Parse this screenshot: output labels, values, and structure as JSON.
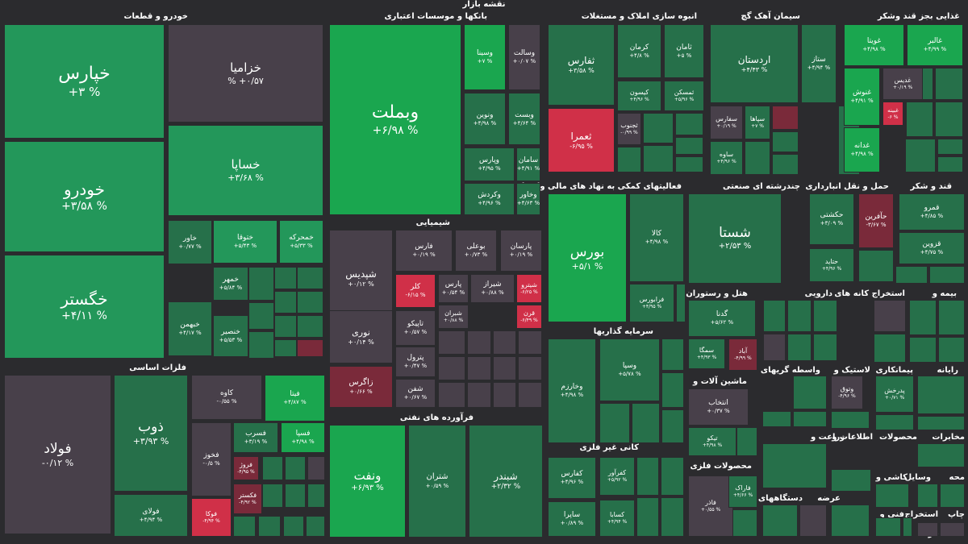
{
  "page_title": "نقشه بازار",
  "colors": {
    "background": "#2b2b2e",
    "strong_up": "#1aa64f",
    "up": "#23975a",
    "mild_up": "#26704a",
    "flat": "#48404a",
    "down": "#7a2a3a",
    "strong_down": "#d03048"
  },
  "sectors": [
    {
      "name": "خودرو و قطعات",
      "tiles": [
        {
          "symbol": "خپارس",
          "change": "+۳ %"
        },
        {
          "symbol": "خودرو",
          "change": "+۳/۵۸ %"
        },
        {
          "symbol": "خگستر",
          "change": "+۴/۱۱ %"
        },
        {
          "symbol": "خزامیا",
          "change": "% +۰/۵۷"
        },
        {
          "symbol": "خساپا",
          "change": "+۳/۶۸ %"
        },
        {
          "symbol": "خاور",
          "change": "+۰/۷۷ %"
        },
        {
          "symbol": "خبهمن",
          "change": "+۴/۱۷ %"
        },
        {
          "symbol": "ختوقا",
          "change": "+۵/۴۳ %"
        },
        {
          "symbol": "خمحرکه",
          "change": "+۵/۳۳ %"
        },
        {
          "symbol": "خمهر",
          "change": "+۵/۸۴ %"
        },
        {
          "symbol": "خنصیر",
          "change": "+۵/۵۳ %"
        }
      ]
    },
    {
      "name": "بانکها و موسسات اعتباری",
      "tiles": [
        {
          "symbol": "وبملت",
          "change": "+۶/۹۸ %"
        },
        {
          "symbol": "وسینا",
          "change": "+۷ %"
        },
        {
          "symbol": "وسالت",
          "change": "+۰/۰۷ %"
        },
        {
          "symbol": "ونوین",
          "change": "+۴/۹۸ %"
        },
        {
          "symbol": "وبست",
          "change": "+۴/۶۴ %"
        },
        {
          "symbol": "وپارس",
          "change": "+۴/۹۵ %"
        },
        {
          "symbol": "سامان",
          "change": "+۴/۹۱ %"
        },
        {
          "symbol": "وکردش",
          "change": "+۴/۹۶ %"
        },
        {
          "symbol": "وخاور",
          "change": "+۴/۶۳ %"
        }
      ]
    },
    {
      "name": "شیمیایی",
      "tiles": [
        {
          "symbol": "شپدیس",
          "change": "+۰/۱۲ %"
        },
        {
          "symbol": "نوری",
          "change": "+۰/۱۴ %"
        },
        {
          "symbol": "زاگرس",
          "change": "+۰/۶۶ %"
        },
        {
          "symbol": "فارس",
          "change": "+۰/۱۹ %"
        },
        {
          "symbol": "بوعلی",
          "change": "+۰/۷۳ %"
        },
        {
          "symbol": "پارسان",
          "change": "+۰/۱۹ %"
        },
        {
          "symbol": "کلر",
          "change": "-۶/۱۵ %"
        },
        {
          "symbol": "پارس",
          "change": "+۰/۵۴ %"
        },
        {
          "symbol": "شیراز",
          "change": "+۰/۸۸ %"
        },
        {
          "symbol": "شیترو",
          "change": "-۶/۲۵ %"
        },
        {
          "symbol": "شبران",
          "change": "+۰/۸۸ %"
        },
        {
          "symbol": "قرن",
          "change": "-۶/۴۹ %"
        },
        {
          "symbol": "تاپیکو",
          "change": "+۰/۵۷ %"
        },
        {
          "symbol": "پترول",
          "change": "+۰/۴۷ %"
        },
        {
          "symbol": "شفن",
          "change": "+۰/۶۷ %"
        }
      ]
    },
    {
      "name": "فرآورده های نفتی",
      "tiles": [
        {
          "symbol": "ونفت",
          "change": "+۶/۹۳ %"
        },
        {
          "symbol": "شتران",
          "change": "+۰/۵۹ %"
        },
        {
          "symbol": "شبندر",
          "change": "+۲/۳۲ %"
        }
      ]
    },
    {
      "name": "فلزات اساسی",
      "tiles": [
        {
          "symbol": "فولاد",
          "change": "-۰/۱۲ %"
        },
        {
          "symbol": "ذوب",
          "change": "+۳/۹۳ %"
        },
        {
          "symbol": "فولای",
          "change": "+۴/۹۴ %"
        },
        {
          "symbol": "کاوه",
          "change": "-۰/۵۵ %"
        },
        {
          "symbol": "فیتا",
          "change": "+۴/۸۷ %"
        },
        {
          "symbol": "فخوز",
          "change": "-۰/۵ %"
        },
        {
          "symbol": "فسرب",
          "change": "+۳/۱۹ %"
        },
        {
          "symbol": "فسپا",
          "change": "+۴/۹۸ %"
        },
        {
          "symbol": "فروژ",
          "change": "-۴/۹۵ %"
        },
        {
          "symbol": "فکستر",
          "change": "-۴/۹۲ %"
        },
        {
          "symbol": "فوکا",
          "change": "-۴/۹۴ %"
        }
      ]
    },
    {
      "name": "انبوه سازی املاک و مستغلات",
      "tiles": [
        {
          "symbol": "ثفارس",
          "change": "+۳/۵۸ %"
        },
        {
          "symbol": "کرمان",
          "change": "+۴/۸ %"
        },
        {
          "symbol": "ثامان",
          "change": "+۵ %"
        },
        {
          "symbol": "کیسون",
          "change": "+۴/۹۶ %"
        },
        {
          "symbol": "ثمسکن",
          "change": "+۵/۹۶ %"
        },
        {
          "symbol": "ثعمرا",
          "change": "-۶/۹۵ %"
        },
        {
          "symbol": "ثجنوب",
          "change": "-۰/۹۹ %"
        }
      ]
    },
    {
      "name": "سیمان آهک گچ",
      "tiles": [
        {
          "symbol": "اردستان",
          "change": "+۴/۴۳ %"
        },
        {
          "symbol": "ستاز",
          "change": "+۴/۹۴ %"
        },
        {
          "symbol": "سفارس",
          "change": "+۰/۱۹ %"
        },
        {
          "symbol": "سپاها",
          "change": "+۷ %"
        },
        {
          "symbol": "ساوه",
          "change": "+۴/۹۶ %"
        }
      ]
    },
    {
      "name": "غذایی بجز قند وشکر",
      "tiles": [
        {
          "symbol": "غویتا",
          "change": "+۴/۹۸ %"
        },
        {
          "symbol": "غالبر",
          "change": "+۴/۹۹ %"
        },
        {
          "symbol": "غنوش",
          "change": "+۴/۹۱ %"
        },
        {
          "symbol": "غدیس",
          "change": "+۰/۱۹ %"
        },
        {
          "symbol": "غبینه",
          "change": "-۶ %"
        },
        {
          "symbol": "غدانه",
          "change": "+۴/۹۸ %"
        }
      ]
    },
    {
      "name": "فعالیتهای کمکی به نهاد های مالی واسط",
      "tiles": [
        {
          "symbol": "بورس",
          "change": "+۵/۱ %"
        },
        {
          "symbol": "کالا",
          "change": "+۴/۹۸ %"
        },
        {
          "symbol": "فرابورس",
          "change": "+۴/۹۵ %"
        }
      ]
    },
    {
      "name": "چندرشته ای صنعتی",
      "tiles": [
        {
          "symbol": "شستا",
          "change": "+۲/۵۳ %"
        }
      ]
    },
    {
      "name": "حمل و نقل انبارداری",
      "tiles": [
        {
          "symbol": "حکشتی",
          "change": "+۳/۰۹ %"
        },
        {
          "symbol": "حآفرین",
          "change": "-۳/۶۷ %"
        },
        {
          "symbol": "حتاید",
          "change": "+۴/۹۶ %"
        }
      ]
    },
    {
      "name": "قند و شکر",
      "tiles": [
        {
          "symbol": "قمرو",
          "change": "+۴/۸۵ %"
        },
        {
          "symbol": "قزوین",
          "change": "+۴/۷۵ %"
        }
      ]
    },
    {
      "name": "سرمایه گذاریها",
      "tiles": [
        {
          "symbol": "وسپا",
          "change": "+۵/۷۸ %"
        },
        {
          "symbol": "وخارزم",
          "change": "+۴/۹۸ %"
        }
      ]
    },
    {
      "name": "کانی غیر فلزی",
      "tiles": [
        {
          "symbol": "کفارس",
          "change": "+۴/۹۶ %"
        },
        {
          "symbol": "کفرآور",
          "change": "+۵/۹۲ %"
        },
        {
          "symbol": "ساپرا",
          "change": "+۰/۸۹ %"
        },
        {
          "symbol": "کسابا",
          "change": "+۴/۹۴ %"
        }
      ]
    },
    {
      "name": "هتل و رستوران",
      "tiles": [
        {
          "symbol": "گدنا",
          "change": "+۵/۶۲ %"
        },
        {
          "symbol": "سمگا",
          "change": "+۴/۹۳ %"
        },
        {
          "symbol": "آباد",
          "change": "-۴/۹۹ %"
        }
      ]
    },
    {
      "name": "ماشین آلات و",
      "tiles": [
        {
          "symbol": "انتخاب",
          "change": "+۰/۳۷ %"
        },
        {
          "symbol": "تیکو",
          "change": "+۴/۹۸ %"
        }
      ]
    },
    {
      "name": "محصولات فلزی",
      "tiles": [
        {
          "symbol": "فاذر",
          "change": "+۰/۵۵ %"
        },
        {
          "symbol": "فاراک",
          "change": "+۴/۶۶ %"
        }
      ]
    },
    {
      "name": "دارویی",
      "tiles": []
    },
    {
      "name": "استخراج کانه های",
      "tiles": [
        {
          "symbol": "کگل",
          "change": "+۰/۵۹ %"
        },
        {
          "symbol": "ومعادن",
          "change": "+۴/۹۸ %"
        }
      ]
    },
    {
      "name": "بیمه و",
      "tiles": []
    },
    {
      "name": "واسطه گریهای",
      "tiles": [
        {
          "symbol": "وتوق",
          "change": "-۴/۹۶ %"
        }
      ]
    },
    {
      "name": "لاستیک و",
      "tiles": [
        {
          "symbol": "پدرخش",
          "change": "+۰/۷۱ %"
        }
      ]
    },
    {
      "name": "پیمانکاری",
      "tiles": [
        {
          "symbol": "پالس",
          "change": "+۴/۹۹ %"
        }
      ]
    },
    {
      "name": "رایانه",
      "tiles": []
    },
    {
      "name": "زراعت و",
      "tiles": []
    },
    {
      "name": "اطلاعات و",
      "tiles": [
        {
          "symbol": "های وب",
          "change": "+۴/۹۸ %"
        },
        {
          "symbol": "اخابر",
          "change": "+۰/۸۱ %"
        }
      ]
    },
    {
      "name": "محصولات",
      "tiles": []
    },
    {
      "name": "مخابرات",
      "tiles": []
    },
    {
      "name": "کاشی و",
      "tiles": []
    },
    {
      "name": "وسایل",
      "tiles": []
    },
    {
      "name": "محه",
      "tiles": []
    },
    {
      "name": "عرضه",
      "tiles": []
    },
    {
      "name": "دستگاههای برقی",
      "tiles": []
    },
    {
      "name": "فنی و",
      "tiles": []
    },
    {
      "name": "استخراج",
      "tiles": []
    },
    {
      "name": "چاپ",
      "tiles": []
    },
    {
      "name": "خرده",
      "tiles": []
    },
    {
      "name": "سم",
      "tiles": []
    }
  ]
}
